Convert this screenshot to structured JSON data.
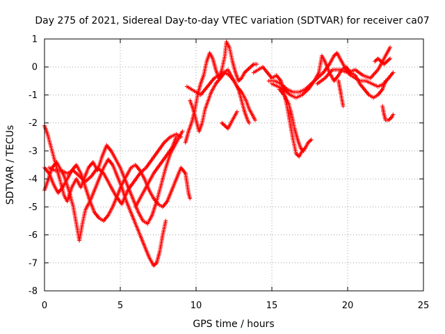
{
  "chart_data": {
    "type": "scatter",
    "title": "Day 275 of 2021, Sidereal Day-to-day VTEC variation (SDTVAR) for receiver ca07",
    "xlabel": "GPS time / hours",
    "ylabel": "SDTVAR / TECUs",
    "xlim": [
      0,
      25
    ],
    "ylim": [
      -8,
      1
    ],
    "xticks": [
      0,
      5,
      10,
      15,
      20,
      25
    ],
    "yticks": [
      -8,
      -7,
      -6,
      -5,
      -4,
      -3,
      -2,
      -1,
      0,
      1
    ],
    "grid": true,
    "marker": "+",
    "color": "#ff0000",
    "series": [
      {
        "points": [
          [
            0,
            -2.1
          ],
          [
            0.2,
            -2.4
          ],
          [
            0.5,
            -3.0
          ],
          [
            0.8,
            -3.6
          ],
          [
            1.0,
            -4.0
          ],
          [
            1.3,
            -4.6
          ],
          [
            1.5,
            -4.8
          ],
          [
            1.8,
            -4.3
          ],
          [
            2.1,
            -4.0
          ],
          [
            2.4,
            -4.3
          ],
          [
            2.6,
            -4.0
          ],
          [
            2.9,
            -3.6
          ],
          [
            3.2,
            -3.4
          ],
          [
            3.5,
            -3.7
          ],
          [
            3.8,
            -3.2
          ],
          [
            4.1,
            -2.8
          ],
          [
            4.4,
            -3.0
          ],
          [
            4.7,
            -3.3
          ],
          [
            5.0,
            -3.6
          ],
          [
            5.3,
            -4.0
          ],
          [
            5.6,
            -4.4
          ],
          [
            5.9,
            -4.8
          ],
          [
            6.2,
            -5.2
          ],
          [
            6.5,
            -5.5
          ],
          [
            6.8,
            -5.6
          ],
          [
            7.1,
            -5.3
          ],
          [
            7.4,
            -4.8
          ],
          [
            7.7,
            -4.2
          ],
          [
            8.0,
            -3.6
          ],
          [
            8.3,
            -3.1
          ],
          [
            8.6,
            -2.8
          ],
          [
            8.9,
            -2.5
          ],
          [
            9.1,
            -2.3
          ]
        ]
      },
      {
        "points": [
          [
            0,
            -4.4
          ],
          [
            0.2,
            -4.1
          ],
          [
            0.5,
            -3.6
          ],
          [
            0.8,
            -3.4
          ],
          [
            1.0,
            -3.6
          ],
          [
            1.3,
            -3.9
          ],
          [
            1.6,
            -4.4
          ],
          [
            1.9,
            -5.0
          ],
          [
            2.1,
            -5.6
          ],
          [
            2.3,
            -6.2
          ],
          [
            2.5,
            -5.6
          ],
          [
            2.7,
            -5.1
          ],
          [
            3.0,
            -4.8
          ],
          [
            3.3,
            -4.4
          ],
          [
            3.6,
            -4.0
          ],
          [
            3.9,
            -3.6
          ],
          [
            4.2,
            -3.3
          ],
          [
            4.5,
            -3.5
          ],
          [
            4.8,
            -3.9
          ],
          [
            5.1,
            -4.3
          ],
          [
            5.4,
            -4.8
          ],
          [
            5.7,
            -5.2
          ],
          [
            6.0,
            -5.6
          ],
          [
            6.3,
            -6.0
          ],
          [
            6.6,
            -6.4
          ],
          [
            6.9,
            -6.8
          ],
          [
            7.2,
            -7.1
          ],
          [
            7.4,
            -7.0
          ],
          [
            7.6,
            -6.6
          ],
          [
            7.8,
            -6.0
          ],
          [
            8.0,
            -5.5
          ]
        ]
      },
      {
        "points": [
          [
            0,
            -3.6
          ],
          [
            0.3,
            -3.8
          ],
          [
            0.6,
            -4.2
          ],
          [
            0.9,
            -4.5
          ],
          [
            1.2,
            -4.3
          ],
          [
            1.5,
            -4.0
          ],
          [
            1.8,
            -3.7
          ],
          [
            2.1,
            -3.5
          ],
          [
            2.4,
            -3.8
          ],
          [
            2.7,
            -4.3
          ],
          [
            3.0,
            -4.8
          ],
          [
            3.3,
            -5.2
          ],
          [
            3.6,
            -5.4
          ],
          [
            3.9,
            -5.5
          ],
          [
            4.2,
            -5.3
          ],
          [
            4.5,
            -5.0
          ],
          [
            4.8,
            -4.6
          ],
          [
            5.1,
            -4.2
          ],
          [
            5.4,
            -3.9
          ],
          [
            5.7,
            -3.6
          ],
          [
            6.0,
            -3.5
          ],
          [
            6.3,
            -3.7
          ],
          [
            6.6,
            -4.0
          ],
          [
            6.9,
            -4.4
          ],
          [
            7.2,
            -4.7
          ],
          [
            7.5,
            -4.9
          ],
          [
            7.8,
            -5.0
          ],
          [
            8.1,
            -4.8
          ],
          [
            8.4,
            -4.4
          ],
          [
            8.7,
            -4.0
          ],
          [
            9.0,
            -3.6
          ],
          [
            9.3,
            -3.8
          ],
          [
            9.5,
            -4.5
          ],
          [
            9.6,
            -4.7
          ]
        ]
      },
      {
        "points": [
          [
            0.3,
            -3.6
          ],
          [
            0.7,
            -3.7
          ],
          [
            1.1,
            -3.7
          ],
          [
            1.5,
            -3.8
          ],
          [
            1.9,
            -3.7
          ],
          [
            2.3,
            -3.9
          ],
          [
            2.7,
            -4.1
          ],
          [
            3.1,
            -3.9
          ],
          [
            3.5,
            -3.6
          ],
          [
            3.9,
            -3.8
          ],
          [
            4.3,
            -4.2
          ],
          [
            4.7,
            -4.6
          ],
          [
            5.1,
            -4.9
          ],
          [
            5.5,
            -4.4
          ],
          [
            5.9,
            -4.1
          ],
          [
            6.3,
            -3.8
          ],
          [
            6.7,
            -3.6
          ],
          [
            7.1,
            -3.3
          ],
          [
            7.5,
            -3.0
          ],
          [
            7.9,
            -2.7
          ],
          [
            8.3,
            -2.5
          ],
          [
            8.7,
            -2.4
          ],
          [
            9.0,
            -2.5
          ]
        ]
      },
      {
        "points": [
          [
            6.0,
            -5.0
          ],
          [
            6.4,
            -4.6
          ],
          [
            6.8,
            -4.2
          ],
          [
            7.2,
            -3.8
          ],
          [
            7.6,
            -3.5
          ],
          [
            8.0,
            -3.2
          ],
          [
            8.4,
            -2.9
          ],
          [
            8.7,
            -2.5
          ]
        ]
      },
      {
        "points": [
          [
            9.3,
            -2.7
          ],
          [
            9.5,
            -2.3
          ],
          [
            9.7,
            -2.0
          ],
          [
            9.9,
            -1.6
          ],
          [
            10.1,
            -1.0
          ],
          [
            10.3,
            -0.6
          ],
          [
            10.5,
            -0.3
          ],
          [
            10.7,
            0.2
          ],
          [
            10.9,
            0.5
          ],
          [
            11.1,
            0.3
          ],
          [
            11.3,
            -0.1
          ],
          [
            11.5,
            -0.4
          ],
          [
            11.7,
            -0.1
          ],
          [
            11.9,
            0.4
          ],
          [
            12.0,
            0.9
          ],
          [
            12.2,
            0.7
          ],
          [
            12.4,
            0.2
          ],
          [
            12.6,
            -0.2
          ],
          [
            12.8,
            -0.5
          ],
          [
            13.0,
            -0.4
          ],
          [
            13.2,
            -0.2
          ],
          [
            13.4,
            -0.1
          ],
          [
            13.6,
            0.0
          ],
          [
            13.8,
            0.1
          ],
          [
            14.0,
            0.1
          ]
        ]
      },
      {
        "points": [
          [
            9.4,
            -0.7
          ],
          [
            9.7,
            -0.8
          ],
          [
            10.0,
            -0.9
          ],
          [
            10.3,
            -1.0
          ],
          [
            10.6,
            -0.8
          ],
          [
            10.9,
            -0.6
          ],
          [
            11.2,
            -0.4
          ],
          [
            11.5,
            -0.3
          ],
          [
            11.8,
            -0.2
          ],
          [
            12.1,
            -0.1
          ],
          [
            12.4,
            -0.4
          ],
          [
            12.7,
            -0.7
          ],
          [
            13.0,
            -0.9
          ],
          [
            13.3,
            -1.2
          ],
          [
            13.5,
            -1.5
          ],
          [
            13.7,
            -1.7
          ],
          [
            13.9,
            -1.9
          ]
        ]
      },
      {
        "points": [
          [
            9.6,
            -1.2
          ],
          [
            9.8,
            -1.5
          ],
          [
            10.0,
            -1.9
          ],
          [
            10.2,
            -2.3
          ],
          [
            10.4,
            -2.0
          ],
          [
            10.6,
            -1.5
          ],
          [
            10.8,
            -1.2
          ],
          [
            11.0,
            -0.9
          ],
          [
            11.3,
            -0.6
          ],
          [
            11.6,
            -0.4
          ],
          [
            11.9,
            -0.2
          ],
          [
            12.2,
            -0.3
          ],
          [
            12.5,
            -0.5
          ],
          [
            12.8,
            -0.8
          ],
          [
            13.0,
            -1.2
          ],
          [
            13.2,
            -1.6
          ],
          [
            13.4,
            -1.9
          ],
          [
            13.5,
            -2.0
          ]
        ]
      },
      {
        "points": [
          [
            11.7,
            -2.0
          ],
          [
            11.9,
            -2.1
          ],
          [
            12.1,
            -2.2
          ],
          [
            12.3,
            -2.0
          ],
          [
            12.5,
            -1.8
          ],
          [
            12.7,
            -1.6
          ]
        ]
      },
      {
        "points": [
          [
            13.8,
            -0.2
          ],
          [
            14.1,
            -0.1
          ],
          [
            14.4,
            0.0
          ],
          [
            14.7,
            -0.2
          ],
          [
            15.0,
            -0.4
          ],
          [
            15.3,
            -0.3
          ],
          [
            15.6,
            -0.5
          ],
          [
            15.8,
            -0.9
          ],
          [
            16.0,
            -1.4
          ],
          [
            16.2,
            -2.0
          ],
          [
            16.4,
            -2.6
          ],
          [
            16.6,
            -3.1
          ],
          [
            16.8,
            -3.2
          ],
          [
            17.0,
            -3.0
          ],
          [
            17.2,
            -2.9
          ],
          [
            17.4,
            -2.7
          ],
          [
            17.6,
            -2.6
          ]
        ]
      },
      {
        "points": [
          [
            15.5,
            -0.8
          ],
          [
            15.8,
            -1.0
          ],
          [
            16.1,
            -1.3
          ],
          [
            16.3,
            -1.7
          ],
          [
            16.5,
            -2.2
          ],
          [
            16.7,
            -2.6
          ],
          [
            16.9,
            -2.9
          ],
          [
            17.1,
            -3.0
          ]
        ]
      },
      {
        "points": [
          [
            14.8,
            -0.5
          ],
          [
            15.2,
            -0.5
          ],
          [
            15.6,
            -0.6
          ],
          [
            16.0,
            -0.8
          ],
          [
            16.4,
            -0.9
          ],
          [
            16.8,
            -0.9
          ],
          [
            17.2,
            -0.8
          ],
          [
            17.6,
            -0.6
          ],
          [
            18.0,
            -0.4
          ],
          [
            18.4,
            -0.2
          ],
          [
            18.8,
            0.1
          ],
          [
            19.1,
            0.4
          ],
          [
            19.3,
            0.5
          ],
          [
            19.6,
            0.2
          ],
          [
            19.9,
            -0.1
          ],
          [
            20.2,
            -0.3
          ],
          [
            20.5,
            -0.4
          ],
          [
            20.8,
            -0.5
          ],
          [
            21.2,
            -0.5
          ],
          [
            21.6,
            -0.6
          ],
          [
            22.0,
            -0.7
          ],
          [
            22.4,
            -0.6
          ],
          [
            22.7,
            -0.4
          ],
          [
            23.0,
            -0.2
          ]
        ]
      },
      {
        "points": [
          [
            15.0,
            -0.6
          ],
          [
            15.4,
            -0.7
          ],
          [
            15.8,
            -0.8
          ],
          [
            16.2,
            -1.0
          ],
          [
            16.6,
            -1.1
          ],
          [
            17.0,
            -1.0
          ],
          [
            17.4,
            -0.8
          ],
          [
            17.8,
            -0.5
          ],
          [
            18.1,
            -0.2
          ],
          [
            18.3,
            0.4
          ],
          [
            18.5,
            0.2
          ],
          [
            18.8,
            -0.2
          ],
          [
            19.1,
            -0.5
          ],
          [
            19.4,
            -0.3
          ],
          [
            19.6,
            -0.1
          ],
          [
            19.9,
            0.0
          ],
          [
            20.2,
            -0.2
          ],
          [
            20.5,
            -0.3
          ],
          [
            20.8,
            -0.6
          ],
          [
            21.1,
            -0.8
          ],
          [
            21.4,
            -1.0
          ],
          [
            21.7,
            -1.1
          ],
          [
            22.0,
            -1.0
          ],
          [
            22.3,
            -0.8
          ],
          [
            22.5,
            -0.5
          ]
        ]
      },
      {
        "points": [
          [
            18.0,
            -0.6
          ],
          [
            18.5,
            -0.4
          ],
          [
            19.0,
            -0.1
          ],
          [
            19.5,
            -0.1
          ],
          [
            20.0,
            -0.2
          ],
          [
            20.5,
            -0.1
          ],
          [
            21.0,
            -0.3
          ],
          [
            21.5,
            -0.4
          ],
          [
            22.0,
            -0.1
          ],
          [
            22.3,
            0.2
          ],
          [
            22.6,
            0.5
          ],
          [
            22.8,
            0.7
          ]
        ]
      },
      {
        "points": [
          [
            22.3,
            -1.4
          ],
          [
            22.4,
            -1.7
          ],
          [
            22.5,
            -1.9
          ],
          [
            22.7,
            -1.9
          ],
          [
            22.9,
            -1.8
          ],
          [
            23.0,
            -1.7
          ]
        ]
      },
      {
        "points": [
          [
            19.4,
            -0.5
          ],
          [
            19.5,
            -0.8
          ],
          [
            19.6,
            -1.1
          ],
          [
            19.7,
            -1.4
          ]
        ]
      },
      {
        "points": [
          [
            21.8,
            0.2
          ],
          [
            22.0,
            0.3
          ],
          [
            22.2,
            0.2
          ],
          [
            22.4,
            0.1
          ],
          [
            22.6,
            0.2
          ],
          [
            22.8,
            0.3
          ]
        ]
      }
    ]
  }
}
